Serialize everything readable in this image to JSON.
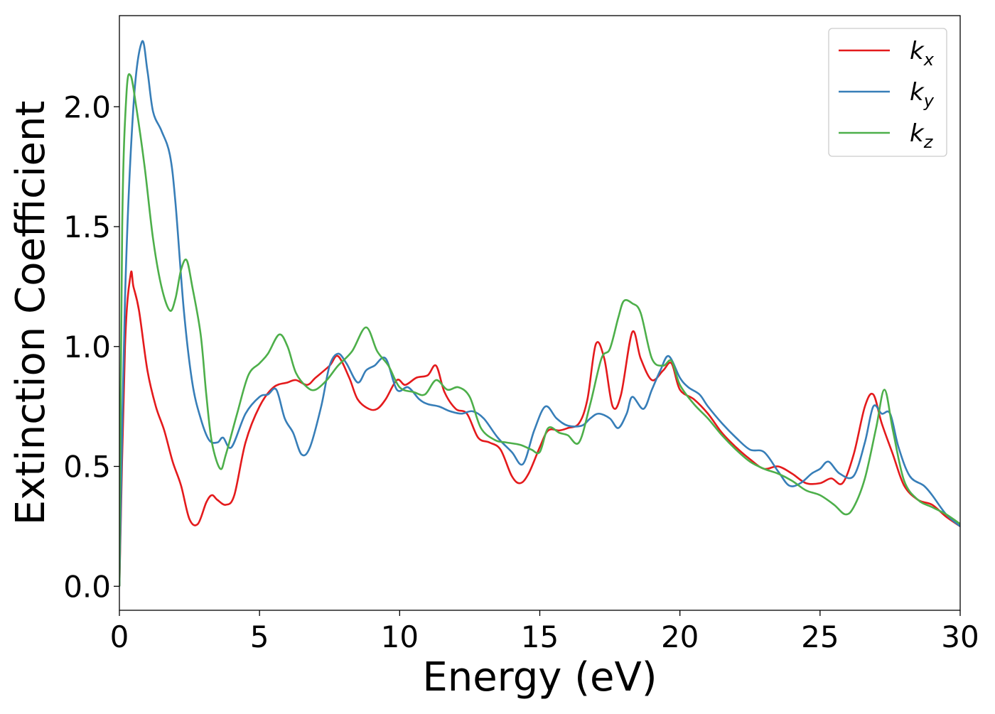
{
  "chart_data": {
    "type": "line",
    "title": "",
    "xlabel": "Energy (eV)",
    "ylabel": "Extinction Coefficient",
    "xlim": [
      0,
      30
    ],
    "ylim": [
      -0.1,
      2.38
    ],
    "xticks": [
      0,
      5,
      10,
      15,
      20,
      25,
      30
    ],
    "xtick_labels": [
      "0",
      "5",
      "10",
      "15",
      "20",
      "25",
      "30"
    ],
    "yticks": [
      0.0,
      0.5,
      1.0,
      1.5,
      2.0
    ],
    "ytick_labels": [
      "0.0",
      "0.5",
      "1.0",
      "1.5",
      "2.0"
    ],
    "grid": false,
    "legend_position": "top-right",
    "series": [
      {
        "name": "k_x",
        "label_main": "k",
        "label_sub": "x",
        "color": "#e41a1c",
        "points": [
          [
            0,
            0
          ],
          [
            0.2,
            1.0
          ],
          [
            0.4,
            1.3
          ],
          [
            0.5,
            1.25
          ],
          [
            0.7,
            1.15
          ],
          [
            1.0,
            0.9
          ],
          [
            1.3,
            0.75
          ],
          [
            1.6,
            0.65
          ],
          [
            1.9,
            0.52
          ],
          [
            2.2,
            0.42
          ],
          [
            2.5,
            0.28
          ],
          [
            2.8,
            0.26
          ],
          [
            3.1,
            0.35
          ],
          [
            3.3,
            0.38
          ],
          [
            3.5,
            0.36
          ],
          [
            3.8,
            0.34
          ],
          [
            4.1,
            0.38
          ],
          [
            4.5,
            0.6
          ],
          [
            5.0,
            0.75
          ],
          [
            5.5,
            0.83
          ],
          [
            6.0,
            0.85
          ],
          [
            6.3,
            0.86
          ],
          [
            6.7,
            0.84
          ],
          [
            7.0,
            0.87
          ],
          [
            7.5,
            0.92
          ],
          [
            7.8,
            0.96
          ],
          [
            8.2,
            0.87
          ],
          [
            8.5,
            0.78
          ],
          [
            8.9,
            0.74
          ],
          [
            9.2,
            0.74
          ],
          [
            9.5,
            0.78
          ],
          [
            9.9,
            0.86
          ],
          [
            10.2,
            0.84
          ],
          [
            10.6,
            0.87
          ],
          [
            11.0,
            0.88
          ],
          [
            11.3,
            0.92
          ],
          [
            11.6,
            0.81
          ],
          [
            12.0,
            0.74
          ],
          [
            12.4,
            0.72
          ],
          [
            12.8,
            0.62
          ],
          [
            13.2,
            0.6
          ],
          [
            13.6,
            0.57
          ],
          [
            14.0,
            0.46
          ],
          [
            14.3,
            0.43
          ],
          [
            14.6,
            0.47
          ],
          [
            15.0,
            0.58
          ],
          [
            15.3,
            0.65
          ],
          [
            15.7,
            0.65
          ],
          [
            16.0,
            0.66
          ],
          [
            16.4,
            0.68
          ],
          [
            16.7,
            0.78
          ],
          [
            17.0,
            1.01
          ],
          [
            17.3,
            0.95
          ],
          [
            17.6,
            0.75
          ],
          [
            17.9,
            0.8
          ],
          [
            18.3,
            1.06
          ],
          [
            18.6,
            0.95
          ],
          [
            19.0,
            0.86
          ],
          [
            19.4,
            0.9
          ],
          [
            19.7,
            0.93
          ],
          [
            20.0,
            0.82
          ],
          [
            20.5,
            0.78
          ],
          [
            21.0,
            0.72
          ],
          [
            21.5,
            0.64
          ],
          [
            22.0,
            0.58
          ],
          [
            22.5,
            0.53
          ],
          [
            23.0,
            0.49
          ],
          [
            23.5,
            0.5
          ],
          [
            24.0,
            0.47
          ],
          [
            24.5,
            0.43
          ],
          [
            25.0,
            0.43
          ],
          [
            25.4,
            0.45
          ],
          [
            25.8,
            0.43
          ],
          [
            26.2,
            0.55
          ],
          [
            26.6,
            0.75
          ],
          [
            26.9,
            0.8
          ],
          [
            27.2,
            0.68
          ],
          [
            27.6,
            0.55
          ],
          [
            28.0,
            0.42
          ],
          [
            28.5,
            0.36
          ],
          [
            29.0,
            0.34
          ],
          [
            29.5,
            0.29
          ],
          [
            30.0,
            0.25
          ]
        ]
      },
      {
        "name": "k_y",
        "label_main": "k",
        "label_sub": "y",
        "color": "#377eb8",
        "points": [
          [
            0,
            0
          ],
          [
            0.2,
            1.2
          ],
          [
            0.5,
            2.0
          ],
          [
            0.8,
            2.27
          ],
          [
            1.0,
            2.15
          ],
          [
            1.2,
            1.98
          ],
          [
            1.5,
            1.9
          ],
          [
            1.8,
            1.8
          ],
          [
            2.0,
            1.6
          ],
          [
            2.3,
            1.15
          ],
          [
            2.6,
            0.85
          ],
          [
            2.9,
            0.7
          ],
          [
            3.2,
            0.61
          ],
          [
            3.5,
            0.6
          ],
          [
            3.7,
            0.62
          ],
          [
            4.0,
            0.58
          ],
          [
            4.5,
            0.72
          ],
          [
            5.0,
            0.79
          ],
          [
            5.3,
            0.8
          ],
          [
            5.6,
            0.82
          ],
          [
            5.9,
            0.7
          ],
          [
            6.2,
            0.64
          ],
          [
            6.5,
            0.55
          ],
          [
            6.8,
            0.58
          ],
          [
            7.2,
            0.75
          ],
          [
            7.5,
            0.92
          ],
          [
            7.8,
            0.97
          ],
          [
            8.1,
            0.93
          ],
          [
            8.5,
            0.85
          ],
          [
            8.8,
            0.9
          ],
          [
            9.1,
            0.92
          ],
          [
            9.5,
            0.95
          ],
          [
            9.9,
            0.82
          ],
          [
            10.3,
            0.83
          ],
          [
            10.7,
            0.78
          ],
          [
            11.0,
            0.76
          ],
          [
            11.4,
            0.75
          ],
          [
            11.8,
            0.73
          ],
          [
            12.2,
            0.72
          ],
          [
            12.6,
            0.73
          ],
          [
            13.0,
            0.7
          ],
          [
            13.5,
            0.62
          ],
          [
            14.0,
            0.56
          ],
          [
            14.4,
            0.51
          ],
          [
            14.8,
            0.65
          ],
          [
            15.2,
            0.75
          ],
          [
            15.6,
            0.7
          ],
          [
            16.0,
            0.67
          ],
          [
            16.5,
            0.67
          ],
          [
            16.8,
            0.7
          ],
          [
            17.1,
            0.72
          ],
          [
            17.5,
            0.7
          ],
          [
            17.8,
            0.66
          ],
          [
            18.1,
            0.72
          ],
          [
            18.3,
            0.79
          ],
          [
            18.7,
            0.74
          ],
          [
            19.0,
            0.82
          ],
          [
            19.3,
            0.9
          ],
          [
            19.6,
            0.96
          ],
          [
            20.0,
            0.87
          ],
          [
            20.3,
            0.83
          ],
          [
            20.7,
            0.8
          ],
          [
            21.0,
            0.75
          ],
          [
            21.5,
            0.68
          ],
          [
            22.0,
            0.62
          ],
          [
            22.5,
            0.57
          ],
          [
            23.0,
            0.56
          ],
          [
            23.5,
            0.48
          ],
          [
            23.9,
            0.42
          ],
          [
            24.3,
            0.43
          ],
          [
            24.7,
            0.47
          ],
          [
            25.0,
            0.49
          ],
          [
            25.3,
            0.52
          ],
          [
            25.7,
            0.47
          ],
          [
            26.2,
            0.46
          ],
          [
            26.6,
            0.6
          ],
          [
            26.9,
            0.75
          ],
          [
            27.2,
            0.72
          ],
          [
            27.5,
            0.72
          ],
          [
            27.8,
            0.58
          ],
          [
            28.2,
            0.46
          ],
          [
            28.7,
            0.42
          ],
          [
            29.0,
            0.38
          ],
          [
            29.5,
            0.3
          ],
          [
            30.0,
            0.25
          ]
        ]
      },
      {
        "name": "k_z",
        "label_main": "k",
        "label_sub": "z",
        "color": "#4daf4a",
        "points": [
          [
            0,
            0
          ],
          [
            0.1,
            1.5
          ],
          [
            0.25,
            2.05
          ],
          [
            0.4,
            2.13
          ],
          [
            0.6,
            2.0
          ],
          [
            0.9,
            1.75
          ],
          [
            1.2,
            1.45
          ],
          [
            1.5,
            1.25
          ],
          [
            1.8,
            1.15
          ],
          [
            2.0,
            1.2
          ],
          [
            2.2,
            1.32
          ],
          [
            2.4,
            1.36
          ],
          [
            2.6,
            1.25
          ],
          [
            2.9,
            1.05
          ],
          [
            3.1,
            0.8
          ],
          [
            3.3,
            0.6
          ],
          [
            3.6,
            0.49
          ],
          [
            3.8,
            0.55
          ],
          [
            4.2,
            0.72
          ],
          [
            4.6,
            0.88
          ],
          [
            5.0,
            0.93
          ],
          [
            5.3,
            0.97
          ],
          [
            5.7,
            1.05
          ],
          [
            6.0,
            1.0
          ],
          [
            6.3,
            0.89
          ],
          [
            6.7,
            0.83
          ],
          [
            7.0,
            0.82
          ],
          [
            7.4,
            0.86
          ],
          [
            7.8,
            0.92
          ],
          [
            8.3,
            0.98
          ],
          [
            8.8,
            1.08
          ],
          [
            9.2,
            0.98
          ],
          [
            9.6,
            0.92
          ],
          [
            10.0,
            0.83
          ],
          [
            10.5,
            0.81
          ],
          [
            10.9,
            0.8
          ],
          [
            11.3,
            0.86
          ],
          [
            11.7,
            0.82
          ],
          [
            12.1,
            0.83
          ],
          [
            12.5,
            0.79
          ],
          [
            12.9,
            0.66
          ],
          [
            13.4,
            0.61
          ],
          [
            13.8,
            0.6
          ],
          [
            14.3,
            0.59
          ],
          [
            14.7,
            0.57
          ],
          [
            15.0,
            0.56
          ],
          [
            15.3,
            0.66
          ],
          [
            15.7,
            0.64
          ],
          [
            16.0,
            0.63
          ],
          [
            16.4,
            0.6
          ],
          [
            16.8,
            0.76
          ],
          [
            17.2,
            0.95
          ],
          [
            17.5,
            0.99
          ],
          [
            17.8,
            1.12
          ],
          [
            18.0,
            1.19
          ],
          [
            18.3,
            1.18
          ],
          [
            18.6,
            1.14
          ],
          [
            19.0,
            0.95
          ],
          [
            19.4,
            0.92
          ],
          [
            19.7,
            0.94
          ],
          [
            20.0,
            0.84
          ],
          [
            20.5,
            0.76
          ],
          [
            21.0,
            0.7
          ],
          [
            21.5,
            0.63
          ],
          [
            22.0,
            0.57
          ],
          [
            22.5,
            0.52
          ],
          [
            23.0,
            0.49
          ],
          [
            23.5,
            0.47
          ],
          [
            24.0,
            0.44
          ],
          [
            24.5,
            0.4
          ],
          [
            25.0,
            0.38
          ],
          [
            25.5,
            0.34
          ],
          [
            25.9,
            0.3
          ],
          [
            26.2,
            0.33
          ],
          [
            26.6,
            0.45
          ],
          [
            27.0,
            0.66
          ],
          [
            27.3,
            0.82
          ],
          [
            27.6,
            0.65
          ],
          [
            28.0,
            0.44
          ],
          [
            28.5,
            0.36
          ],
          [
            29.0,
            0.33
          ],
          [
            29.5,
            0.3
          ],
          [
            30.0,
            0.26
          ]
        ]
      }
    ]
  }
}
